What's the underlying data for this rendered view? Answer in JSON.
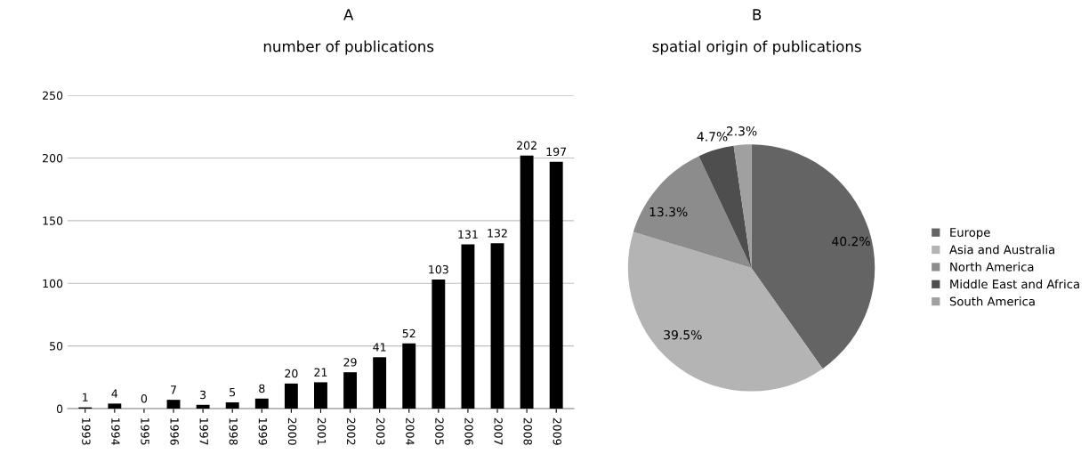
{
  "chart_data": [
    {
      "type": "bar",
      "title": "A",
      "subtitle": "number of publications",
      "categories": [
        "1993",
        "1994",
        "1995",
        "1996",
        "1997",
        "1998",
        "1999",
        "2000",
        "2001",
        "2002",
        "2003",
        "2004",
        "2005",
        "2006",
        "2007",
        "2008",
        "2009"
      ],
      "values": [
        1,
        4,
        0,
        7,
        3,
        5,
        8,
        20,
        21,
        29,
        41,
        52,
        103,
        131,
        132,
        202,
        197
      ],
      "color": "#000000",
      "ylim": [
        0,
        250
      ],
      "yticks": [
        0,
        50,
        100,
        150,
        200,
        250
      ],
      "grid": "y",
      "data_labels": true
    },
    {
      "type": "pie",
      "title": "B",
      "subtitle": "spatial origin of publications",
      "categories": [
        "Europe",
        "Asia and Australia",
        "North America",
        "Middle East and Africa",
        "South America"
      ],
      "values": [
        40.2,
        39.5,
        13.3,
        4.7,
        2.3
      ],
      "value_labels": [
        "40.2%",
        "39.5%",
        "13.3%",
        "4.7%",
        "2.3%"
      ],
      "colors": [
        "#646464",
        "#b4b4b4",
        "#8c8c8c",
        "#4e4e4e",
        "#a0a0a0"
      ],
      "legend": "right"
    }
  ]
}
